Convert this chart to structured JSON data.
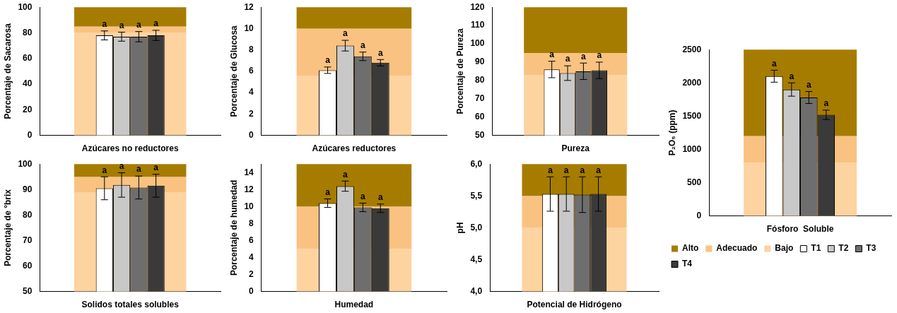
{
  "chart_data": [
    {
      "type": "bar",
      "xlabel": "Azúcares no reductores",
      "ylabel": "Porcentaje de Sacarosa",
      "categories": [
        null
      ],
      "ylim": [
        0,
        100
      ],
      "yticks": [
        0,
        20,
        40,
        60,
        80,
        100
      ],
      "grid": false,
      "legend": false,
      "bands": [
        {
          "axis": "y",
          "from": 0,
          "to": 80,
          "color": "#fdd3a0"
        },
        {
          "axis": "y",
          "from": 80,
          "to": 85,
          "color": "#f9c281"
        },
        {
          "axis": "y",
          "from": 85,
          "to": 100,
          "color": "#a67c00"
        }
      ],
      "series": [
        {
          "color": "#ffffff",
          "values": [
            78
          ],
          "errors": [
            3.5
          ],
          "value_labels": [
            "a"
          ]
        },
        {
          "color": "#c8c8c8",
          "values": [
            77
          ],
          "errors": [
            3.5
          ],
          "value_labels": [
            "a"
          ]
        },
        {
          "color": "#6e6e6e",
          "values": [
            77
          ],
          "errors": [
            4
          ],
          "value_labels": [
            "a"
          ]
        },
        {
          "color": "#3a3a3a",
          "values": [
            78
          ],
          "errors": [
            4
          ],
          "value_labels": [
            "a"
          ]
        }
      ]
    },
    {
      "type": "bar",
      "xlabel": "Azúcares reductores",
      "ylabel": "Porcentaje de Glucosa",
      "categories": [
        null
      ],
      "ylim": [
        0,
        12
      ],
      "yticks": [
        0,
        2,
        4,
        6,
        8,
        10,
        12
      ],
      "grid": false,
      "legend": false,
      "bands": [
        {
          "axis": "y",
          "from": 0,
          "to": 5.6,
          "color": "#fdd3a0"
        },
        {
          "axis": "y",
          "from": 5.6,
          "to": 10,
          "color": "#f9c281"
        },
        {
          "axis": "y",
          "from": 10,
          "to": 12,
          "color": "#a67c00"
        }
      ],
      "series": [
        {
          "color": "#ffffff",
          "values": [
            6.1
          ],
          "errors": [
            0.3
          ],
          "value_labels": [
            "a"
          ]
        },
        {
          "color": "#c8c8c8",
          "values": [
            8.4
          ],
          "errors": [
            0.5
          ],
          "value_labels": [
            "a"
          ]
        },
        {
          "color": "#6e6e6e",
          "values": [
            7.4
          ],
          "errors": [
            0.4
          ],
          "value_labels": [
            "a"
          ]
        },
        {
          "color": "#3a3a3a",
          "values": [
            6.8
          ],
          "errors": [
            0.3
          ],
          "value_labels": [
            "a"
          ]
        }
      ]
    },
    {
      "type": "bar",
      "xlabel": "Pureza",
      "ylabel": "Porcentaje de Pureza",
      "categories": [
        null
      ],
      "ylim": [
        50,
        120
      ],
      "yticks": [
        50,
        60,
        70,
        80,
        90,
        100,
        110,
        120
      ],
      "grid": false,
      "legend": false,
      "bands": [
        {
          "axis": "y",
          "from": 50,
          "to": 83,
          "color": "#fdd3a0"
        },
        {
          "axis": "y",
          "from": 83,
          "to": 95,
          "color": "#f9c281"
        },
        {
          "axis": "y",
          "from": 95,
          "to": 120,
          "color": "#a67c00"
        }
      ],
      "series": [
        {
          "color": "#ffffff",
          "values": [
            86
          ],
          "errors": [
            4.5
          ],
          "value_labels": [
            "a"
          ]
        },
        {
          "color": "#c8c8c8",
          "values": [
            84
          ],
          "errors": [
            4
          ],
          "value_labels": [
            "a"
          ]
        },
        {
          "color": "#6e6e6e",
          "values": [
            85
          ],
          "errors": [
            4.5
          ],
          "value_labels": [
            "a"
          ]
        },
        {
          "color": "#3a3a3a",
          "values": [
            85.5
          ],
          "errors": [
            4.5
          ],
          "value_labels": [
            "a"
          ]
        }
      ]
    },
    {
      "type": "bar",
      "xlabel": "Fósforo  Soluble",
      "ylabel": "P₂O₅ (ppm)",
      "categories": [
        null
      ],
      "ylim": [
        0,
        2500
      ],
      "yticks": [
        0,
        500,
        1000,
        1500,
        2000,
        2500
      ],
      "grid": false,
      "legend": "bottom",
      "bands": [
        {
          "axis": "y",
          "from": 0,
          "to": 800,
          "label": "Bajo",
          "color": "#fdd3a0"
        },
        {
          "axis": "y",
          "from": 800,
          "to": 1200,
          "label": "Adecuado",
          "color": "#f9c281"
        },
        {
          "axis": "y",
          "from": 1200,
          "to": 2500,
          "label": "Alto",
          "color": "#a67c00"
        }
      ],
      "series": [
        {
          "name": "T1",
          "color": "#ffffff",
          "values": [
            2100
          ],
          "errors": [
            90
          ],
          "value_labels": [
            "a"
          ]
        },
        {
          "name": "T2",
          "color": "#c8c8c8",
          "values": [
            1900
          ],
          "errors": [
            100
          ],
          "value_labels": [
            "a"
          ]
        },
        {
          "name": "T3",
          "color": "#6e6e6e",
          "values": [
            1780
          ],
          "errors": [
            90
          ],
          "value_labels": [
            "a"
          ]
        },
        {
          "name": "T4",
          "color": "#3a3a3a",
          "values": [
            1520
          ],
          "errors": [
            70
          ],
          "value_labels": [
            "a"
          ]
        }
      ]
    },
    {
      "type": "bar",
      "xlabel": "Solidos totales solubles",
      "ylabel": "Porcentaje de °brix",
      "categories": [
        null
      ],
      "ylim": [
        50,
        100
      ],
      "yticks": [
        50,
        60,
        70,
        80,
        90,
        100
      ],
      "grid": false,
      "legend": false,
      "bands": [
        {
          "axis": "y",
          "from": 50,
          "to": 89,
          "color": "#fdd3a0"
        },
        {
          "axis": "y",
          "from": 89,
          "to": 95,
          "color": "#f9c281"
        },
        {
          "axis": "y",
          "from": 95,
          "to": 100,
          "color": "#a67c00"
        }
      ],
      "series": [
        {
          "color": "#ffffff",
          "values": [
            90.5
          ],
          "errors": [
            4.5
          ],
          "value_labels": [
            "a"
          ]
        },
        {
          "color": "#c8c8c8",
          "values": [
            91.8
          ],
          "errors": [
            4.8
          ],
          "value_labels": [
            "a"
          ]
        },
        {
          "color": "#6e6e6e",
          "values": [
            90.8
          ],
          "errors": [
            4.5
          ],
          "value_labels": [
            "a"
          ]
        },
        {
          "color": "#3a3a3a",
          "values": [
            91.5
          ],
          "errors": [
            4.5
          ],
          "value_labels": [
            "a"
          ]
        }
      ]
    },
    {
      "type": "bar",
      "xlabel": "Humedad",
      "ylabel": "Porcentaje de humedad",
      "categories": [
        null
      ],
      "ylim": [
        0,
        15
      ],
      "yticks": [
        0,
        2,
        4,
        6,
        8,
        10,
        12,
        14
      ],
      "grid": false,
      "legend": false,
      "bands": [
        {
          "axis": "y",
          "from": 0,
          "to": 5,
          "color": "#fdd3a0"
        },
        {
          "axis": "y",
          "from": 5,
          "to": 10,
          "color": "#f9c281"
        },
        {
          "axis": "y",
          "from": 10,
          "to": 15,
          "color": "#a67c00"
        }
      ],
      "series": [
        {
          "color": "#ffffff",
          "values": [
            10.4
          ],
          "errors": [
            0.5
          ],
          "value_labels": [
            "a"
          ]
        },
        {
          "color": "#c8c8c8",
          "values": [
            12.4
          ],
          "errors": [
            0.6
          ],
          "value_labels": [
            "a"
          ]
        },
        {
          "color": "#6e6e6e",
          "values": [
            9.9
          ],
          "errors": [
            0.5
          ],
          "value_labels": [
            "a"
          ]
        },
        {
          "color": "#3a3a3a",
          "values": [
            9.8
          ],
          "errors": [
            0.5
          ],
          "value_labels": [
            "a"
          ]
        }
      ]
    },
    {
      "type": "bar",
      "xlabel": "Potencial de Hidrógeno",
      "ylabel": "pH",
      "categories": [
        null
      ],
      "ylim": [
        4,
        6
      ],
      "yticks": [
        {
          "value": 4,
          "label": "4,0"
        },
        {
          "value": 4.5,
          "label": "4,5"
        },
        {
          "value": 5,
          "label": "5,0"
        },
        {
          "value": 5.5,
          "label": "5,5"
        },
        {
          "value": 6,
          "label": "6,0"
        }
      ],
      "grid": false,
      "legend": false,
      "bands": [
        {
          "axis": "y",
          "from": 4,
          "to": 5,
          "color": "#fdd3a0"
        },
        {
          "axis": "y",
          "from": 5,
          "to": 5.5,
          "color": "#f9c281"
        },
        {
          "axis": "y",
          "from": 5.5,
          "to": 6,
          "color": "#a67c00"
        }
      ],
      "series": [
        {
          "color": "#ffffff",
          "values": [
            5.53
          ],
          "errors": [
            0.27
          ],
          "value_labels": [
            "a"
          ]
        },
        {
          "color": "#c8c8c8",
          "values": [
            5.53
          ],
          "errors": [
            0.27
          ],
          "value_labels": [
            "a"
          ]
        },
        {
          "color": "#6e6e6e",
          "values": [
            5.52
          ],
          "errors": [
            0.28
          ],
          "value_labels": [
            "a"
          ]
        },
        {
          "color": "#3a3a3a",
          "values": [
            5.53
          ],
          "errors": [
            0.27
          ],
          "value_labels": [
            "a"
          ]
        }
      ]
    }
  ]
}
